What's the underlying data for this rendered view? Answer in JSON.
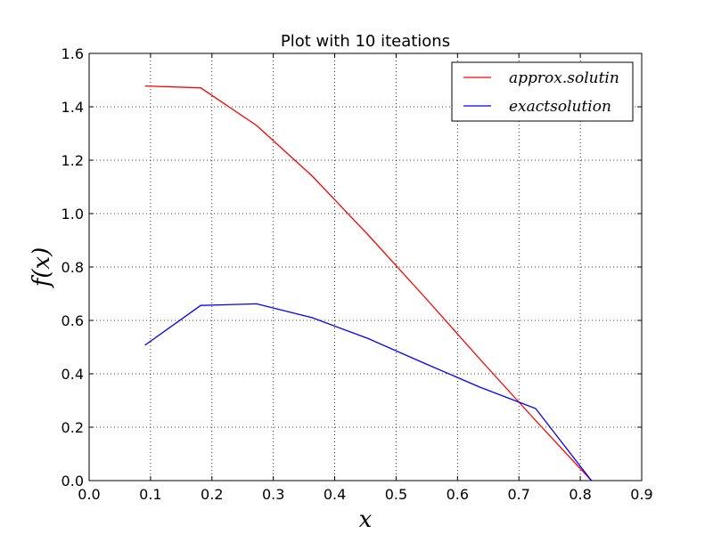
{
  "chart_data": {
    "type": "line",
    "title": "Plot with 10 iteations",
    "xlabel": "x",
    "ylabel": "f(x)",
    "xlim": [
      0.0,
      0.9
    ],
    "ylim": [
      0.0,
      1.6
    ],
    "xticks": [
      "0.0",
      "0.1",
      "0.2",
      "0.3",
      "0.4",
      "0.5",
      "0.6",
      "0.7",
      "0.8",
      "0.9"
    ],
    "yticks": [
      "0.0",
      "0.2",
      "0.4",
      "0.6",
      "0.8",
      "1.0",
      "1.2",
      "1.4",
      "1.6"
    ],
    "grid": true,
    "legend_position": "top-right",
    "series": [
      {
        "name": "approx.solutin",
        "color": "#ff0000",
        "x": [
          0.0909,
          0.1818,
          0.2727,
          0.3636,
          0.4545,
          0.5455,
          0.6364,
          0.7273,
          0.8182
        ],
        "y": [
          1.478,
          1.471,
          1.33,
          1.14,
          0.92,
          0.69,
          0.455,
          0.225,
          0.0
        ]
      },
      {
        "name": "exactsolution",
        "color": "#0000ff",
        "x": [
          0.0909,
          0.1818,
          0.2727,
          0.3636,
          0.4545,
          0.5455,
          0.6364,
          0.7273,
          0.8182
        ],
        "y": [
          0.507,
          0.656,
          0.662,
          0.61,
          0.532,
          0.44,
          0.35,
          0.27,
          0.0
        ]
      }
    ]
  }
}
